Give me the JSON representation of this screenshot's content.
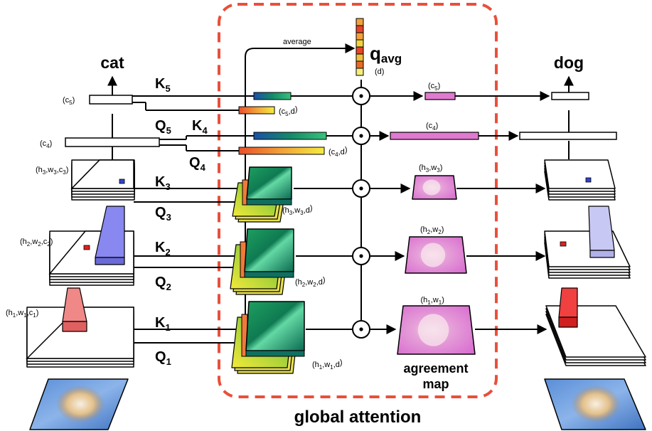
{
  "left_output": "cat",
  "right_output": "dog",
  "average": "average",
  "q_avg": {
    "base": "q",
    "sub": "avg",
    "dim": "(d)"
  },
  "global_attention": "global attention",
  "agreement": {
    "line1": "agreement",
    "line2": "map"
  },
  "levels": [
    {
      "k": "K",
      "q": "Q",
      "idx": "5",
      "feat": [
        "c",
        "5"
      ],
      "kd": [
        "c",
        "5",
        ",d"
      ],
      "map": [
        "c",
        "5"
      ]
    },
    {
      "k": "K",
      "q": "Q",
      "idx": "4",
      "feat": [
        "c",
        "4"
      ],
      "kd": [
        "c",
        "4",
        ",d"
      ],
      "map": [
        "c",
        "4"
      ]
    },
    {
      "k": "K",
      "q": "Q",
      "idx": "3",
      "feat": [
        "h",
        "3",
        ",w",
        "3",
        ",c",
        "3"
      ],
      "kd": [
        "h",
        "3",
        ",w",
        "3",
        ",d"
      ],
      "map": [
        "h",
        "3",
        ",w",
        "3"
      ]
    },
    {
      "k": "K",
      "q": "Q",
      "idx": "2",
      "feat": [
        "h",
        "2",
        ",w",
        "2",
        ",c",
        "2"
      ],
      "kd": [
        "h",
        "2",
        ",w",
        "2",
        ",d"
      ],
      "map": [
        "h",
        "2",
        ",w",
        "2"
      ]
    },
    {
      "k": "K",
      "q": "Q",
      "idx": "1",
      "feat": [
        "h",
        "1",
        ",w",
        "1",
        ",c",
        "1"
      ],
      "kd": [
        "h",
        "1",
        ",w",
        "1",
        ",d"
      ],
      "map": [
        "h",
        "1",
        ",w",
        "1"
      ]
    }
  ],
  "colors": {
    "attention_border": "#e8503a",
    "agreement_text": "#cc33aa",
    "vector_pink": "#e07ad0",
    "dot_blue": "#3344cc",
    "dot_red": "#dd2222"
  }
}
